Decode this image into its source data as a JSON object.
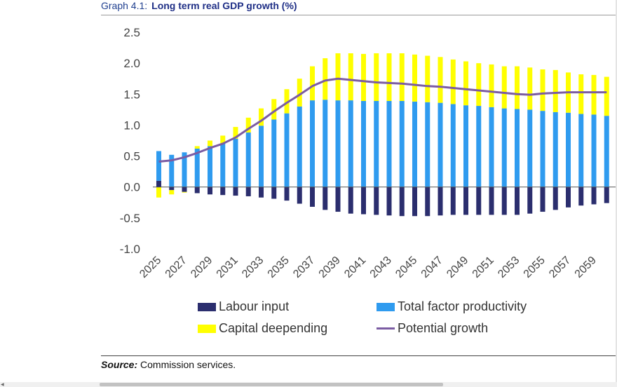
{
  "header": {
    "graph_number": "Graph 4.1:",
    "graph_title": "Long term real GDP growth (%)"
  },
  "source": {
    "label": "Source:",
    "text": "Commission services."
  },
  "colors": {
    "labour": "#2b2e6e",
    "tfp": "#2f9bef",
    "capital": "#ffff00",
    "potential": "#7b5ca3"
  },
  "chart_data": {
    "type": "bar",
    "stacked": true,
    "title": "Long term real GDP growth (%)",
    "xlabel": "",
    "ylabel": "",
    "ylim": [
      -1.0,
      2.5
    ],
    "yticks": [
      "2.5",
      "2.0",
      "1.5",
      "1.0",
      "0.5",
      "0.0",
      "-0.5",
      "-1.0"
    ],
    "grid": false,
    "legend_position": "bottom",
    "categories": [
      "2025",
      "2026",
      "2027",
      "2028",
      "2029",
      "2030",
      "2031",
      "2032",
      "2033",
      "2034",
      "2035",
      "2036",
      "2037",
      "2038",
      "2039",
      "2040",
      "2041",
      "2042",
      "2043",
      "2044",
      "2045",
      "2046",
      "2047",
      "2048",
      "2049",
      "2050",
      "2051",
      "2052",
      "2053",
      "2054",
      "2055",
      "2056",
      "2057",
      "2058",
      "2059",
      "2060"
    ],
    "xtick_labels": [
      "2025",
      "2027",
      "2029",
      "2031",
      "2033",
      "2035",
      "2037",
      "2039",
      "2041",
      "2043",
      "2045",
      "2047",
      "2049",
      "2051",
      "2053",
      "2055",
      "2057",
      "2059"
    ],
    "series": [
      {
        "name": "Labour input",
        "kind": "bar",
        "values": [
          0.1,
          -0.05,
          -0.08,
          -0.1,
          -0.12,
          -0.13,
          -0.14,
          -0.15,
          -0.17,
          -0.19,
          -0.22,
          -0.27,
          -0.32,
          -0.37,
          -0.4,
          -0.43,
          -0.44,
          -0.45,
          -0.46,
          -0.47,
          -0.47,
          -0.47,
          -0.46,
          -0.45,
          -0.45,
          -0.45,
          -0.45,
          -0.45,
          -0.45,
          -0.43,
          -0.4,
          -0.37,
          -0.33,
          -0.3,
          -0.28,
          -0.26
        ]
      },
      {
        "name": "Total factor productivity",
        "kind": "bar",
        "values": [
          0.48,
          0.52,
          0.56,
          0.62,
          0.66,
          0.7,
          0.78,
          0.88,
          0.99,
          1.09,
          1.19,
          1.3,
          1.4,
          1.41,
          1.4,
          1.4,
          1.39,
          1.39,
          1.39,
          1.39,
          1.38,
          1.37,
          1.36,
          1.34,
          1.32,
          1.31,
          1.29,
          1.27,
          1.26,
          1.25,
          1.23,
          1.21,
          1.2,
          1.18,
          1.17,
          1.15
        ]
      },
      {
        "name": "Capital deepending",
        "kind": "bar",
        "values": [
          -0.17,
          -0.07,
          -0.01,
          0.04,
          0.09,
          0.13,
          0.19,
          0.24,
          0.28,
          0.33,
          0.39,
          0.45,
          0.55,
          0.67,
          0.76,
          0.76,
          0.76,
          0.77,
          0.77,
          0.77,
          0.76,
          0.75,
          0.74,
          0.72,
          0.71,
          0.69,
          0.69,
          0.68,
          0.69,
          0.68,
          0.67,
          0.68,
          0.65,
          0.64,
          0.64,
          0.63
        ]
      },
      {
        "name": "Potential growth",
        "kind": "line",
        "values": [
          0.41,
          0.43,
          0.48,
          0.55,
          0.63,
          0.7,
          0.8,
          0.94,
          1.07,
          1.22,
          1.36,
          1.49,
          1.63,
          1.72,
          1.75,
          1.73,
          1.71,
          1.69,
          1.68,
          1.67,
          1.65,
          1.63,
          1.62,
          1.6,
          1.58,
          1.56,
          1.54,
          1.52,
          1.5,
          1.49,
          1.51,
          1.52,
          1.53,
          1.53,
          1.53,
          1.53
        ]
      }
    ]
  }
}
